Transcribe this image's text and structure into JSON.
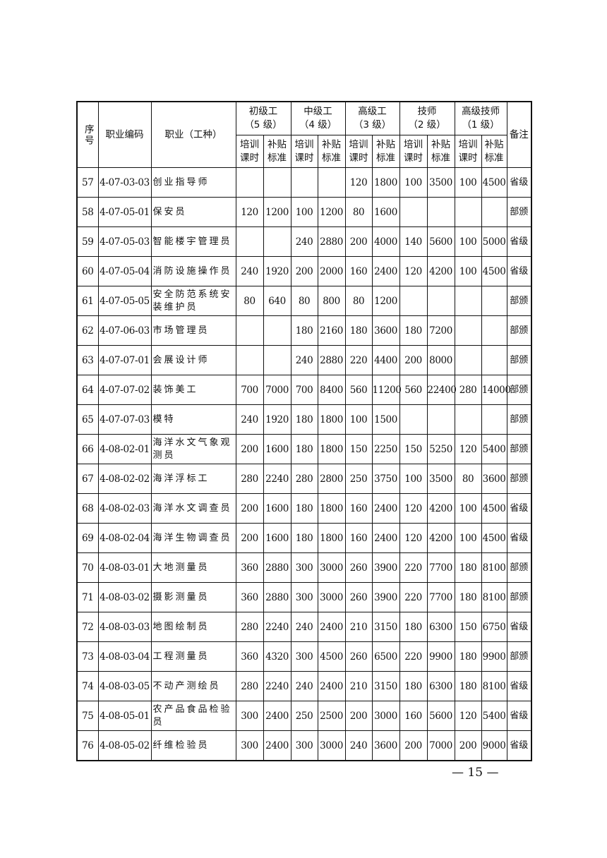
{
  "header": {
    "seq": "序号",
    "code": "职业编码",
    "occupation": "职业（工种）",
    "levels": [
      {
        "name": "初级工",
        "grade": "（5 级）"
      },
      {
        "name": "中级工",
        "grade": "（4 级）"
      },
      {
        "name": "高级工",
        "grade": "（3 级）"
      },
      {
        "name": "技师",
        "grade": "（2 级）"
      },
      {
        "name": "高级技师",
        "grade": "（1 级）"
      }
    ],
    "hours": "培训课时",
    "subsidy": "补贴标准",
    "note": "备注"
  },
  "rows": [
    {
      "no": "57",
      "code": "4-07-03-03",
      "name": "创业指导师",
      "v": [
        "",
        "",
        "",
        "",
        "120",
        "1800",
        "100",
        "3500",
        "100",
        "4500"
      ],
      "note": "省级"
    },
    {
      "no": "58",
      "code": "4-07-05-01",
      "name": "保安员",
      "v": [
        "120",
        "1200",
        "100",
        "1200",
        "80",
        "1600",
        "",
        "",
        "",
        ""
      ],
      "note": "部颁"
    },
    {
      "no": "59",
      "code": "4-07-05-03",
      "name": "智能楼宇管理员",
      "v": [
        "",
        "",
        "240",
        "2880",
        "200",
        "4000",
        "140",
        "5600",
        "100",
        "5000"
      ],
      "note": "省级"
    },
    {
      "no": "60",
      "code": "4-07-05-04",
      "name": "消防设施操作员",
      "v": [
        "240",
        "1920",
        "200",
        "2000",
        "160",
        "2400",
        "120",
        "4200",
        "100",
        "4500"
      ],
      "note": "省级"
    },
    {
      "no": "61",
      "code": "4-07-05-05",
      "name": "安全防范系统安装维护员",
      "v": [
        "80",
        "640",
        "80",
        "800",
        "80",
        "1200",
        "",
        "",
        "",
        ""
      ],
      "note": "部颁"
    },
    {
      "no": "62",
      "code": "4-07-06-03",
      "name": "市场管理员",
      "v": [
        "",
        "",
        "180",
        "2160",
        "180",
        "3600",
        "180",
        "7200",
        "",
        ""
      ],
      "note": "部颁"
    },
    {
      "no": "63",
      "code": "4-07-07-01",
      "name": "会展设计师",
      "v": [
        "",
        "",
        "240",
        "2880",
        "220",
        "4400",
        "200",
        "8000",
        "",
        ""
      ],
      "note": "部颁"
    },
    {
      "no": "64",
      "code": "4-07-07-02",
      "name": "装饰美工",
      "v": [
        "700",
        "7000",
        "700",
        "8400",
        "560",
        "11200",
        "560",
        "22400",
        "280",
        "14000"
      ],
      "note": "部颁"
    },
    {
      "no": "65",
      "code": "4-07-07-03",
      "name": "模特",
      "v": [
        "240",
        "1920",
        "180",
        "1800",
        "100",
        "1500",
        "",
        "",
        "",
        ""
      ],
      "note": "部颁"
    },
    {
      "no": "66",
      "code": "4-08-02-01",
      "name": "海洋水文气象观测员",
      "v": [
        "200",
        "1600",
        "180",
        "1800",
        "150",
        "2250",
        "150",
        "5250",
        "120",
        "5400"
      ],
      "note": "部颁"
    },
    {
      "no": "67",
      "code": "4-08-02-02",
      "name": "海洋浮标工",
      "v": [
        "280",
        "2240",
        "280",
        "2800",
        "250",
        "3750",
        "100",
        "3500",
        "80",
        "3600"
      ],
      "note": "部颁"
    },
    {
      "no": "68",
      "code": "4-08-02-03",
      "name": "海洋水文调查员",
      "v": [
        "200",
        "1600",
        "180",
        "1800",
        "160",
        "2400",
        "120",
        "4200",
        "100",
        "4500"
      ],
      "note": "省级"
    },
    {
      "no": "69",
      "code": "4-08-02-04",
      "name": "海洋生物调查员",
      "v": [
        "200",
        "1600",
        "180",
        "1800",
        "160",
        "2400",
        "120",
        "4200",
        "100",
        "4500"
      ],
      "note": "省级"
    },
    {
      "no": "70",
      "code": "4-08-03-01",
      "name": "大地测量员",
      "v": [
        "360",
        "2880",
        "300",
        "3000",
        "260",
        "3900",
        "220",
        "7700",
        "180",
        "8100"
      ],
      "note": "部颁"
    },
    {
      "no": "71",
      "code": "4-08-03-02",
      "name": "摄影测量员",
      "v": [
        "360",
        "2880",
        "300",
        "3000",
        "260",
        "3900",
        "220",
        "7700",
        "180",
        "8100"
      ],
      "note": "部颁"
    },
    {
      "no": "72",
      "code": "4-08-03-03",
      "name": "地图绘制员",
      "v": [
        "280",
        "2240",
        "240",
        "2400",
        "210",
        "3150",
        "180",
        "6300",
        "150",
        "6750"
      ],
      "note": "省级"
    },
    {
      "no": "73",
      "code": "4-08-03-04",
      "name": "工程测量员",
      "v": [
        "360",
        "4320",
        "300",
        "4500",
        "260",
        "6500",
        "220",
        "9900",
        "180",
        "9900"
      ],
      "note": "部颁"
    },
    {
      "no": "74",
      "code": "4-08-03-05",
      "name": "不动产测绘员",
      "v": [
        "280",
        "2240",
        "240",
        "2400",
        "210",
        "3150",
        "180",
        "6300",
        "180",
        "8100"
      ],
      "note": "省级"
    },
    {
      "no": "75",
      "code": "4-08-05-01",
      "name": "农产品食品检验员",
      "v": [
        "300",
        "2400",
        "250",
        "2500",
        "200",
        "3000",
        "160",
        "5600",
        "120",
        "5400"
      ],
      "note": "省级"
    },
    {
      "no": "76",
      "code": "4-08-05-02",
      "name": "纤维检验员",
      "v": [
        "300",
        "2400",
        "300",
        "3000",
        "240",
        "3600",
        "200",
        "7000",
        "200",
        "9000"
      ],
      "note": "省级"
    }
  ],
  "page_number": "— 15 —"
}
